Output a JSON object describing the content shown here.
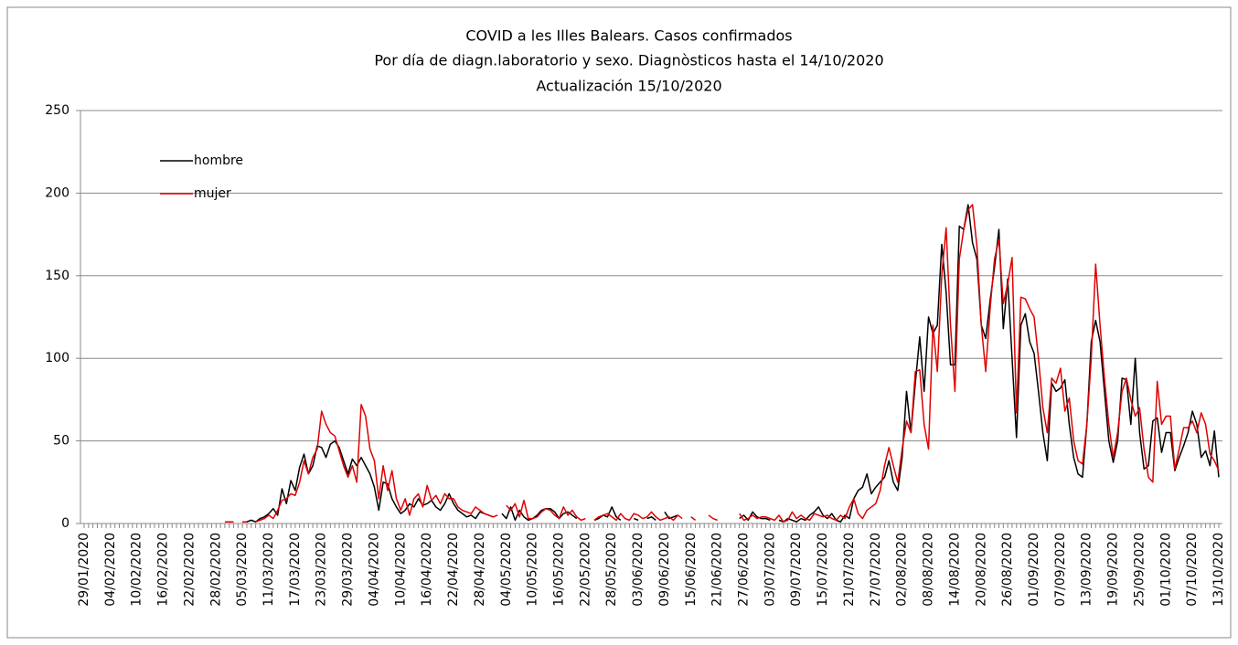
{
  "chart_data": {
    "type": "line",
    "title": "COVID a les Illes Balears. Casos confirmados",
    "subtitle": "Por día de diagn.laboratorio y sexo. Diagnòsticos hasta el 14/10/2020",
    "update": "Actualización  15/10/2020",
    "categories": [
      "29/01/2020",
      null,
      null,
      null,
      null,
      null,
      "04/02/2020",
      null,
      null,
      null,
      null,
      null,
      "10/02/2020",
      null,
      null,
      null,
      null,
      null,
      "16/02/2020",
      null,
      null,
      null,
      null,
      null,
      "22/02/2020",
      null,
      null,
      null,
      null,
      null,
      "28/02/2020",
      null,
      null,
      null,
      null,
      null,
      "05/03/2020",
      null,
      null,
      null,
      null,
      null,
      "11/03/2020",
      null,
      null,
      null,
      null,
      null,
      "17/03/2020",
      null,
      null,
      null,
      null,
      null,
      "23/03/2020",
      null,
      null,
      null,
      null,
      null,
      "29/03/2020",
      null,
      null,
      null,
      null,
      null,
      "04/04/2020",
      null,
      null,
      null,
      null,
      null,
      "10/04/2020",
      null,
      null,
      null,
      null,
      null,
      "16/04/2020",
      null,
      null,
      null,
      null,
      null,
      "22/04/2020",
      null,
      null,
      null,
      null,
      null,
      "28/04/2020",
      null,
      null,
      null,
      null,
      null,
      "04/05/2020",
      null,
      null,
      null,
      null,
      null,
      "10/05/2020",
      null,
      null,
      null,
      null,
      null,
      "16/05/2020",
      null,
      null,
      null,
      null,
      null,
      "22/05/2020",
      null,
      null,
      null,
      null,
      null,
      "28/05/2020",
      null,
      null,
      null,
      null,
      null,
      "03/06/2020",
      null,
      null,
      null,
      null,
      null,
      "09/06/2020",
      null,
      null,
      null,
      null,
      null,
      "15/06/2020",
      null,
      null,
      null,
      null,
      null,
      "21/06/2020",
      null,
      null,
      null,
      null,
      null,
      "27/06/2020",
      null,
      null,
      null,
      null,
      null,
      "03/07/2020",
      null,
      null,
      null,
      null,
      null,
      "09/07/2020",
      null,
      null,
      null,
      null,
      null,
      "15/07/2020",
      null,
      null,
      null,
      null,
      null,
      "21/07/2020",
      null,
      null,
      null,
      null,
      null,
      "27/07/2020",
      null,
      null,
      null,
      null,
      null,
      "02/08/2020",
      null,
      null,
      null,
      null,
      null,
      "08/08/2020",
      null,
      null,
      null,
      null,
      null,
      "14/08/2020",
      null,
      null,
      null,
      null,
      null,
      "20/08/2020",
      null,
      null,
      null,
      null,
      null,
      "26/08/2020",
      null,
      null,
      null,
      null,
      null,
      "01/09/2020",
      null,
      null,
      null,
      null,
      null,
      "07/09/2020",
      null,
      null,
      null,
      null,
      null,
      "13/09/2020",
      null,
      null,
      null,
      null,
      null,
      "19/09/2020",
      null,
      null,
      null,
      null,
      null,
      "25/09/2020",
      null,
      null,
      null,
      null,
      null,
      "01/10/2020",
      null,
      null,
      null,
      null,
      null,
      "07/10/2020",
      null,
      null,
      null,
      null,
      null,
      "13/10/2020"
    ],
    "series": [
      {
        "name": "hombre",
        "color": "#000000",
        "values": [
          null,
          null,
          null,
          null,
          null,
          null,
          null,
          null,
          null,
          null,
          null,
          null,
          null,
          null,
          null,
          null,
          null,
          null,
          null,
          null,
          null,
          null,
          null,
          null,
          null,
          null,
          null,
          null,
          null,
          null,
          null,
          null,
          null,
          null,
          null,
          null,
          1,
          1,
          2,
          1,
          3,
          4,
          6,
          9,
          5,
          21,
          12,
          26,
          20,
          34,
          42,
          30,
          35,
          47,
          46,
          40,
          48,
          50,
          46,
          38,
          30,
          39,
          35,
          40,
          35,
          30,
          22,
          8,
          25,
          24,
          15,
          10,
          6,
          8,
          12,
          10,
          15,
          11,
          12,
          14,
          10,
          8,
          12,
          18,
          12,
          8,
          6,
          4,
          5,
          3,
          7,
          6,
          5,
          4,
          null,
          6,
          3,
          10,
          2,
          8,
          4,
          2,
          3,
          5,
          8,
          9,
          9,
          7,
          3,
          6,
          7,
          5,
          3,
          null,
          4,
          null,
          2,
          3,
          5,
          4,
          10,
          4,
          2,
          null,
          null,
          3,
          2,
          null,
          3,
          4,
          2,
          null,
          7,
          3,
          4,
          5,
          null,
          null,
          null,
          null,
          2,
          null,
          null,
          null,
          null,
          null,
          null,
          null,
          null,
          3,
          5,
          2,
          7,
          4,
          3,
          3,
          2,
          null,
          2,
          1,
          3,
          2,
          1,
          3,
          2,
          5,
          7,
          10,
          5,
          3,
          6,
          2,
          1,
          5,
          3,
          15,
          20,
          22,
          30,
          18,
          22,
          25,
          28,
          38,
          25,
          20,
          40,
          80,
          55,
          85,
          113,
          80,
          125,
          115,
          120,
          169,
          140,
          96,
          96,
          180,
          178,
          193,
          170,
          160,
          120,
          112,
          135,
          155,
          178,
          118,
          148,
          100,
          52,
          120,
          127,
          110,
          103,
          80,
          55,
          38,
          85,
          80,
          82,
          87,
          60,
          40,
          30,
          28,
          60,
          110,
          123,
          110,
          80,
          50,
          37,
          50,
          88,
          87,
          60,
          100,
          55,
          33,
          35,
          62,
          64,
          43,
          55,
          55,
          32,
          40,
          47,
          55,
          68,
          60,
          40,
          44,
          35,
          56,
          28
        ]
      },
      {
        "name": "mujer",
        "color": "#e00000",
        "values": [
          null,
          null,
          null,
          null,
          null,
          null,
          null,
          null,
          null,
          null,
          null,
          null,
          null,
          null,
          null,
          null,
          null,
          null,
          null,
          null,
          null,
          null,
          null,
          null,
          null,
          null,
          null,
          null,
          null,
          null,
          null,
          null,
          1,
          1,
          1,
          null,
          1,
          1,
          null,
          1,
          2,
          3,
          5,
          3,
          8,
          14,
          15,
          18,
          17,
          25,
          38,
          30,
          40,
          45,
          68,
          60,
          55,
          53,
          44,
          35,
          28,
          35,
          25,
          72,
          65,
          45,
          38,
          15,
          35,
          20,
          32,
          15,
          8,
          15,
          5,
          15,
          18,
          10,
          23,
          14,
          17,
          12,
          18,
          15,
          15,
          10,
          8,
          7,
          6,
          10,
          8,
          6,
          5,
          4,
          5,
          null,
          11,
          8,
          12,
          4,
          14,
          3,
          3,
          4,
          7,
          9,
          8,
          5,
          3,
          10,
          5,
          8,
          4,
          2,
          3,
          null,
          2,
          4,
          5,
          6,
          4,
          2,
          6,
          3,
          2,
          6,
          5,
          3,
          4,
          7,
          4,
          2,
          3,
          4,
          2,
          5,
          3,
          null,
          4,
          2,
          null,
          null,
          5,
          3,
          2,
          null,
          null,
          null,
          null,
          6,
          2,
          3,
          5,
          3,
          4,
          4,
          3,
          2,
          5,
          1,
          2,
          7,
          3,
          5,
          3,
          2,
          6,
          5,
          4,
          5,
          3,
          2,
          5,
          3,
          10,
          15,
          6,
          3,
          8,
          10,
          12,
          20,
          35,
          46,
          35,
          25,
          45,
          62,
          55,
          92,
          93,
          60,
          45,
          120,
          92,
          150,
          179,
          120,
          80,
          160,
          178,
          190,
          193,
          168,
          120,
          92,
          130,
          160,
          172,
          133,
          145,
          161,
          67,
          137,
          136,
          130,
          125,
          100,
          70,
          55,
          88,
          85,
          94,
          68,
          76,
          50,
          38,
          36,
          60,
          100,
          157,
          120,
          88,
          60,
          40,
          55,
          80,
          88,
          75,
          65,
          70,
          45,
          28,
          25,
          86,
          60,
          65,
          65,
          33,
          45,
          58,
          58,
          62,
          55,
          67,
          60,
          42,
          38,
          32
        ]
      }
    ],
    "ylim": [
      0,
      250
    ],
    "yticks": [
      0,
      50,
      100,
      150,
      200,
      250
    ],
    "grid": true,
    "legend": "upper-left"
  }
}
